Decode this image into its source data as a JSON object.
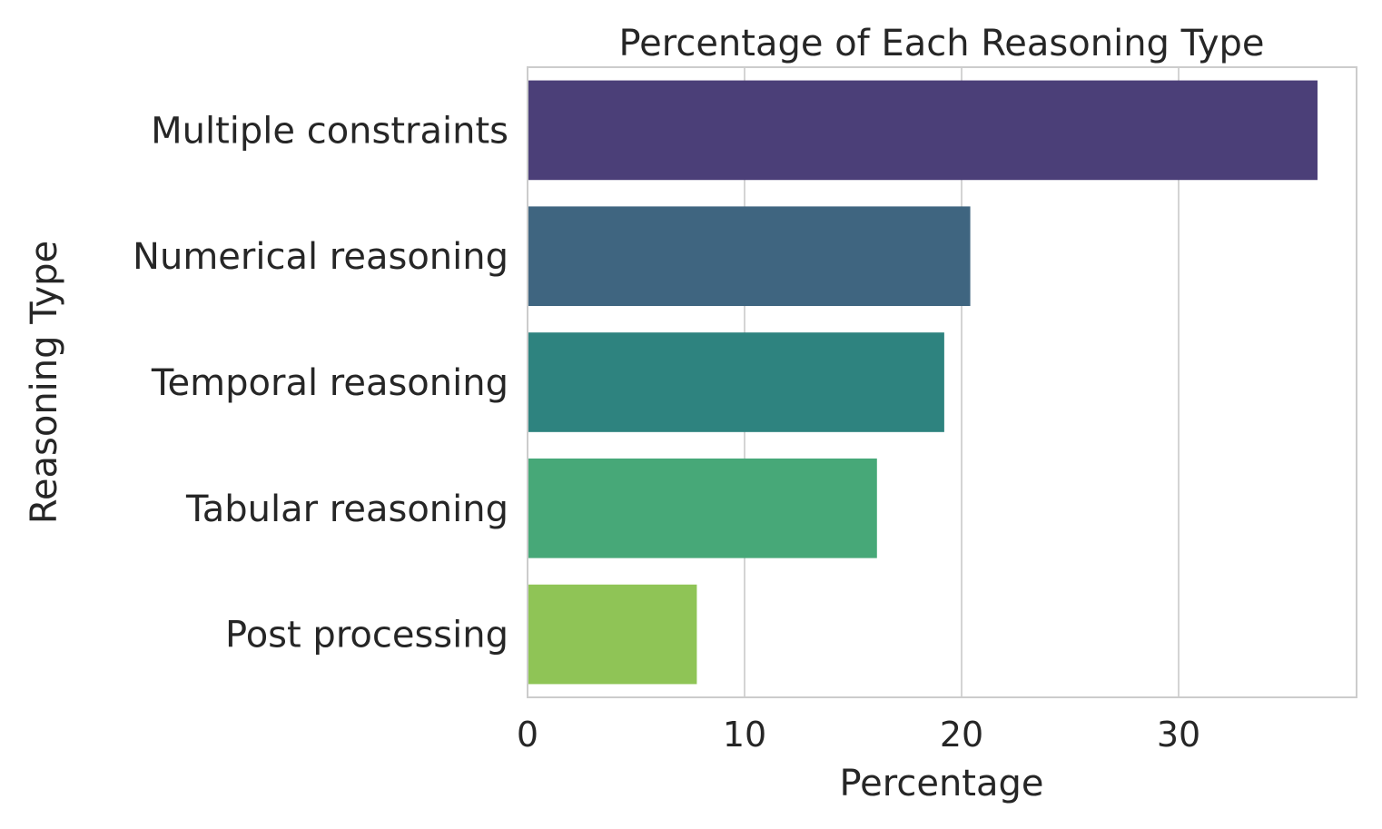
{
  "chart_data": {
    "type": "bar",
    "orientation": "horizontal",
    "title": "Percentage of Each Reasoning Type",
    "xlabel": "Percentage",
    "ylabel": "Reasoning Type",
    "categories": [
      "Multiple constraints",
      "Numerical reasoning",
      "Temporal reasoning",
      "Tabular reasoning",
      "Post processing"
    ],
    "values": [
      36.4,
      20.4,
      19.2,
      16.1,
      7.8
    ],
    "colors": [
      "#4b3f78",
      "#3f6580",
      "#2e837f",
      "#47a878",
      "#8fc456"
    ],
    "xlim": [
      0,
      38.2
    ],
    "xticks": [
      0,
      10,
      20,
      30
    ],
    "grid": true
  }
}
